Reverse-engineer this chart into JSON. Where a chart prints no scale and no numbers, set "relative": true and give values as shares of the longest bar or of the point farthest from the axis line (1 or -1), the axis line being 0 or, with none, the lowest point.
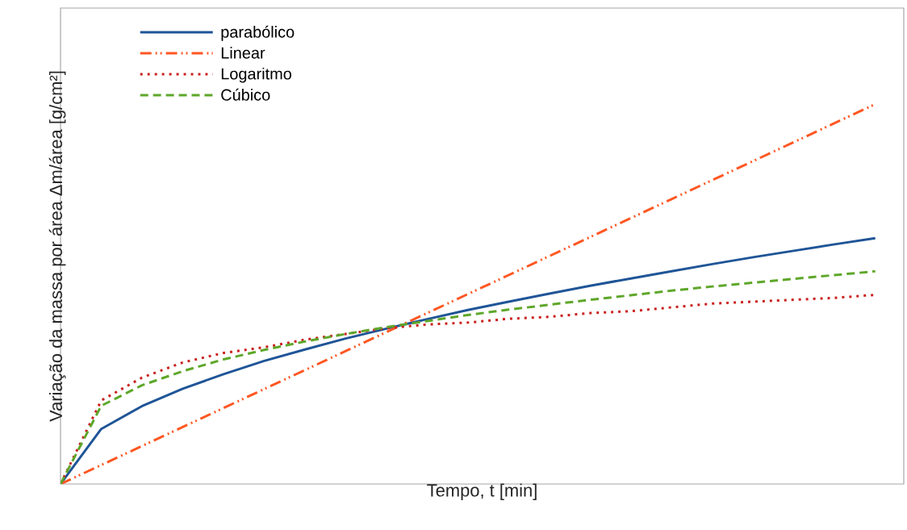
{
  "chart_data": {
    "type": "line",
    "relative": true,
    "xlabel": "Tempo, t [min]",
    "ylabel": "Variação da massa por área Δm/área [g/cm²]",
    "legend": "top left",
    "marker": "none",
    "categories": [
      null,
      null,
      null,
      null,
      null,
      null,
      null,
      null,
      null,
      null,
      null,
      null,
      null,
      null,
      null,
      null,
      null,
      null,
      null,
      null,
      null
    ],
    "series": [
      {
        "name": "parabólico",
        "color": "#1f5597",
        "line_style": "solid",
        "values": [
          0,
          0.145,
          0.205,
          0.251,
          0.289,
          0.324,
          0.354,
          0.383,
          0.409,
          0.434,
          0.458,
          0.48,
          0.501,
          0.522,
          0.541,
          0.56,
          0.579,
          0.597,
          0.614,
          0.631,
          0.647
        ]
      },
      {
        "name": "Linear",
        "color": "#ff5722",
        "line_style": "dashdot",
        "values": [
          0,
          0.05,
          0.1,
          0.15,
          0.2,
          0.25,
          0.3,
          0.35,
          0.4,
          0.45,
          0.5,
          0.55,
          0.6,
          0.65,
          0.7,
          0.75,
          0.8,
          0.85,
          0.9,
          0.95,
          1
        ]
      },
      {
        "name": "Logaritmo",
        "color": "#c9211e",
        "line_style": "dotted",
        "values": [
          0,
          0.22,
          0.28,
          0.32,
          0.345,
          0.36,
          0.38,
          0.395,
          0.41,
          0.42,
          0.425,
          0.435,
          0.44,
          0.45,
          0.455,
          0.465,
          0.475,
          0.48,
          0.485,
          0.49,
          0.498
        ]
      },
      {
        "name": "Cúbico",
        "color": "#5ea72a",
        "line_style": "dashed",
        "values": [
          0,
          0.206,
          0.26,
          0.297,
          0.328,
          0.353,
          0.375,
          0.395,
          0.413,
          0.429,
          0.445,
          0.459,
          0.472,
          0.485,
          0.497,
          0.509,
          0.52,
          0.53,
          0.54,
          0.55,
          0.56
        ]
      }
    ]
  }
}
